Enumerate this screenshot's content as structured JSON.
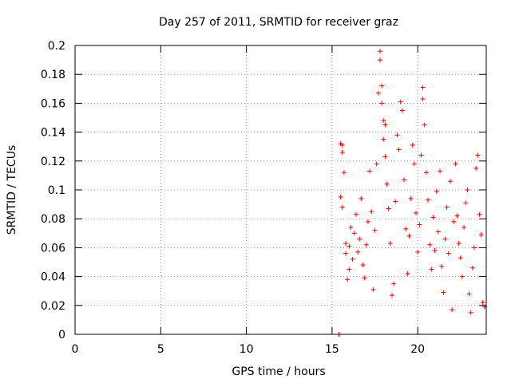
{
  "chart_data": {
    "type": "scatter",
    "title": "Day 257 of 2011, SRMTID for receiver graz",
    "xlabel": "GPS time / hours",
    "ylabel": "SRMTID / TECUs",
    "xlim": [
      0,
      24
    ],
    "ylim": [
      0,
      0.2
    ],
    "xticks": [
      0,
      5,
      10,
      15,
      20
    ],
    "xtick_labels": [
      "0",
      "5",
      "10",
      "15",
      "20"
    ],
    "yticks": [
      0,
      0.02,
      0.04,
      0.06,
      0.08,
      0.1,
      0.12,
      0.14,
      0.16,
      0.18,
      0.2
    ],
    "ytick_labels": [
      "0",
      "0.02",
      "0.04",
      "0.06",
      "0.08",
      "0.1",
      "0.12",
      "0.14",
      "0.16",
      "0.18",
      "0.2"
    ],
    "grid": true,
    "marker": "+",
    "color": "#ff0000",
    "points": [
      [
        15.4,
        0.0
      ],
      [
        15.5,
        0.132
      ],
      [
        15.6,
        0.126
      ],
      [
        15.6,
        0.131
      ],
      [
        15.5,
        0.095
      ],
      [
        15.6,
        0.088
      ],
      [
        15.7,
        0.112
      ],
      [
        15.8,
        0.063
      ],
      [
        15.8,
        0.056
      ],
      [
        15.9,
        0.038
      ],
      [
        16.0,
        0.045
      ],
      [
        16.0,
        0.061
      ],
      [
        16.1,
        0.074
      ],
      [
        16.2,
        0.052
      ],
      [
        16.3,
        0.07
      ],
      [
        16.4,
        0.083
      ],
      [
        16.5,
        0.057
      ],
      [
        16.6,
        0.066
      ],
      [
        16.7,
        0.094
      ],
      [
        16.8,
        0.048
      ],
      [
        16.9,
        0.039
      ],
      [
        17.0,
        0.062
      ],
      [
        17.1,
        0.078
      ],
      [
        17.2,
        0.113
      ],
      [
        17.3,
        0.085
      ],
      [
        17.4,
        0.031
      ],
      [
        17.5,
        0.072
      ],
      [
        17.6,
        0.118
      ],
      [
        17.7,
        0.167
      ],
      [
        17.8,
        0.196
      ],
      [
        17.8,
        0.19
      ],
      [
        17.9,
        0.172
      ],
      [
        17.9,
        0.16
      ],
      [
        18.0,
        0.148
      ],
      [
        18.0,
        0.135
      ],
      [
        18.1,
        0.123
      ],
      [
        18.1,
        0.145
      ],
      [
        18.2,
        0.104
      ],
      [
        18.3,
        0.087
      ],
      [
        18.4,
        0.063
      ],
      [
        18.5,
        0.027
      ],
      [
        18.6,
        0.035
      ],
      [
        18.7,
        0.092
      ],
      [
        18.8,
        0.138
      ],
      [
        18.9,
        0.128
      ],
      [
        19.0,
        0.161
      ],
      [
        19.1,
        0.155
      ],
      [
        19.2,
        0.107
      ],
      [
        19.3,
        0.073
      ],
      [
        19.4,
        0.042
      ],
      [
        19.5,
        0.068
      ],
      [
        19.6,
        0.094
      ],
      [
        19.7,
        0.131
      ],
      [
        19.8,
        0.118
      ],
      [
        19.9,
        0.084
      ],
      [
        20.0,
        0.057
      ],
      [
        20.1,
        0.076
      ],
      [
        20.2,
        0.124
      ],
      [
        20.3,
        0.171
      ],
      [
        20.3,
        0.163
      ],
      [
        20.4,
        0.145
      ],
      [
        20.5,
        0.112
      ],
      [
        20.6,
        0.093
      ],
      [
        20.7,
        0.062
      ],
      [
        20.8,
        0.045
      ],
      [
        20.9,
        0.081
      ],
      [
        21.0,
        0.058
      ],
      [
        21.1,
        0.099
      ],
      [
        21.2,
        0.071
      ],
      [
        21.3,
        0.113
      ],
      [
        21.4,
        0.047
      ],
      [
        21.5,
        0.029
      ],
      [
        21.6,
        0.066
      ],
      [
        21.7,
        0.088
      ],
      [
        21.8,
        0.056
      ],
      [
        21.9,
        0.106
      ],
      [
        22.0,
        0.017
      ],
      [
        22.1,
        0.078
      ],
      [
        22.2,
        0.118
      ],
      [
        22.3,
        0.082
      ],
      [
        22.4,
        0.063
      ],
      [
        22.5,
        0.053
      ],
      [
        22.6,
        0.04
      ],
      [
        22.7,
        0.074
      ],
      [
        22.8,
        0.091
      ],
      [
        22.9,
        0.1
      ],
      [
        23.0,
        0.028
      ],
      [
        23.1,
        0.015
      ],
      [
        23.2,
        0.046
      ],
      [
        23.3,
        0.06
      ],
      [
        23.4,
        0.115
      ],
      [
        23.5,
        0.124
      ],
      [
        23.6,
        0.083
      ],
      [
        23.7,
        0.069
      ],
      [
        23.8,
        0.022
      ],
      [
        23.9,
        0.019
      ]
    ]
  }
}
